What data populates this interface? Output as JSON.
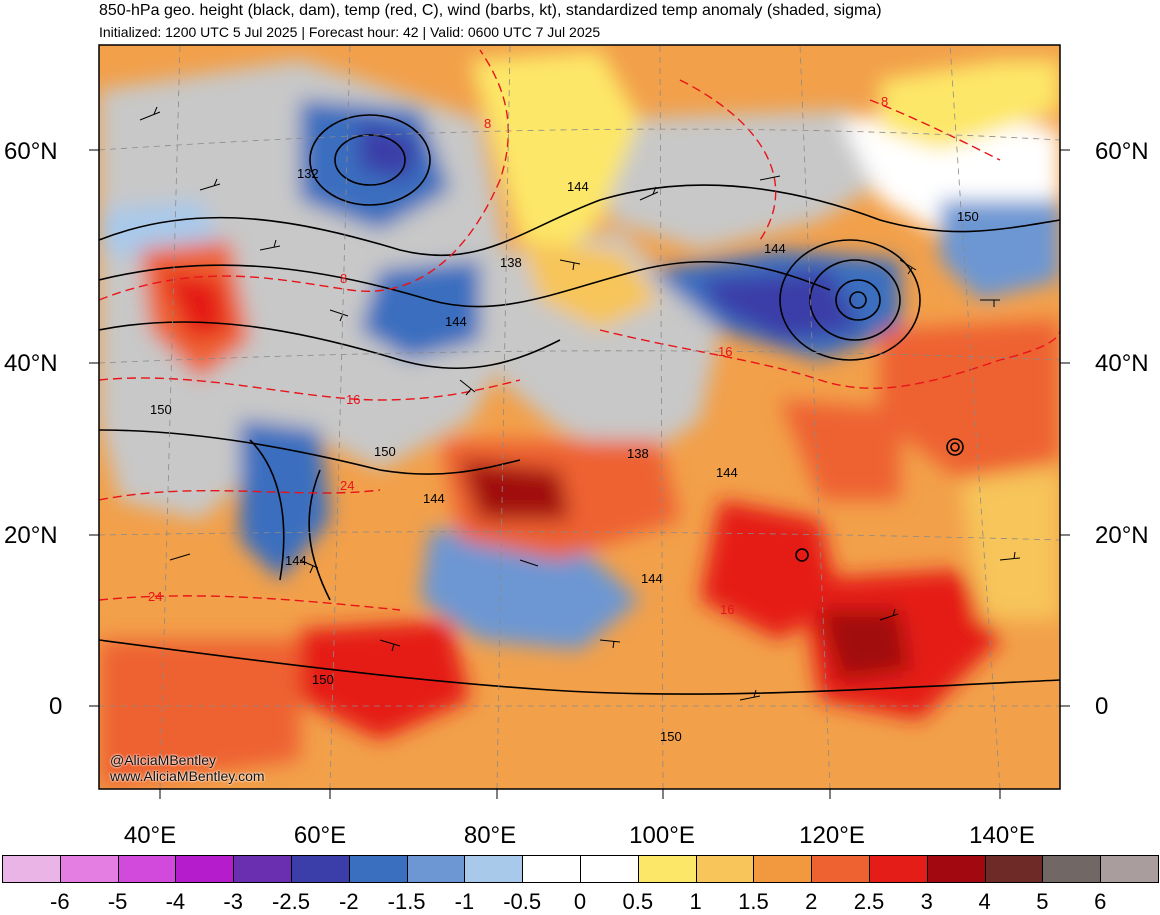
{
  "header": {
    "title": "850-hPa geo. height (black, dam), temp (red, C), wind (barbs, kt), standardized temp anomaly (shaded, sigma)",
    "subtitle": "Initialized: 1200 UTC 5 Jul 2025 | Forecast hour: 42 | Valid: 0600 UTC 7 Jul 2025"
  },
  "lat_labels": [
    "60°N",
    "40°N",
    "20°N",
    "0"
  ],
  "lon_labels": [
    "40°E",
    "60°E",
    "80°E",
    "100°E",
    "120°E",
    "140°E"
  ],
  "watermark": {
    "handle": "@AliciaMBentley",
    "site": "www.AliciaMBentley.com"
  },
  "colorbar": {
    "ticks": [
      "-6",
      "-5",
      "-4",
      "-3",
      "-2.5",
      "-2",
      "-1.5",
      "-1",
      "-0.5",
      "0",
      "0.5",
      "1",
      "1.5",
      "2",
      "2.5",
      "3",
      "4",
      "5",
      "6"
    ],
    "colors": [
      "#ebb4e6",
      "#e57ee2",
      "#d24adb",
      "#b41ccc",
      "#6a2eb0",
      "#3b3ea8",
      "#3a6ebf",
      "#6d97d3",
      "#a9c9ea",
      "#ffffff",
      "#ffffff",
      "#fde768",
      "#f7c55a",
      "#f2983f",
      "#ee6232",
      "#e51d19",
      "#a1080f",
      "#6d2a26",
      "#716866",
      "#a99e9d"
    ]
  },
  "height_labels": [
    "132",
    "144",
    "138",
    "144",
    "144",
    "150",
    "144",
    "138",
    "144",
    "150",
    "150",
    "144",
    "144",
    "150",
    "150"
  ],
  "temp_labels": [
    "8",
    "8",
    "8",
    "16",
    "16",
    "24",
    "24",
    "16"
  ]
}
